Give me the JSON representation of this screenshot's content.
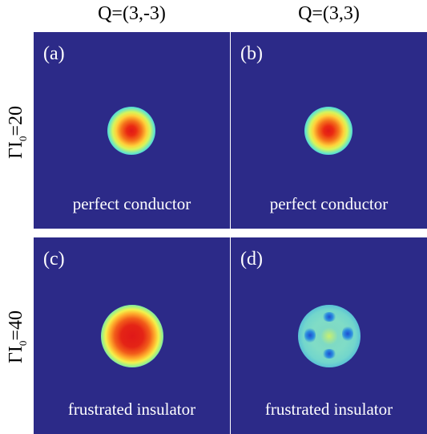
{
  "columns": [
    "Q=(3,-3)",
    "Q=(3,3)"
  ],
  "rows": [
    {
      "label_main": "ΓI",
      "label_sub": "0",
      "label_tail": "=20"
    },
    {
      "label_main": "ΓI",
      "label_sub": "0",
      "label_tail": "=40"
    }
  ],
  "panels": [
    {
      "letter": "(a)",
      "caption": "perfect conductor"
    },
    {
      "letter": "(b)",
      "caption": "perfect conductor"
    },
    {
      "letter": "(c)",
      "caption": "frustrated insulator"
    },
    {
      "letter": "(d)",
      "caption": "frustrated insulator"
    }
  ],
  "colors": {
    "background": "#2c2a88",
    "peak": "#e01818",
    "text": "#ffffff"
  }
}
